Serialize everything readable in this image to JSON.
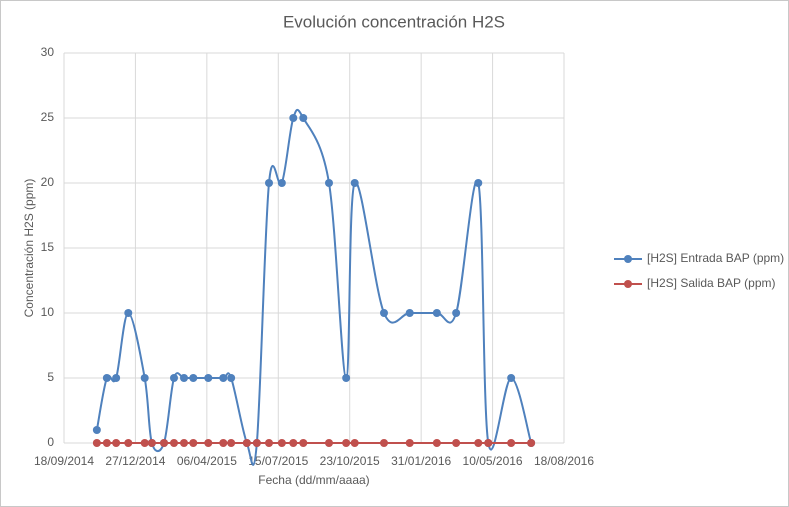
{
  "chart_data": {
    "type": "scatter",
    "smooth": true,
    "title": "Evolución concentración  H2S",
    "x_label": "Fecha (dd/mm/aaaa)",
    "y_label": "Concentración H2S (ppm)",
    "x": [
      "2014-11-03",
      "2014-11-17",
      "2014-11-30",
      "2014-12-17",
      "2015-01-09",
      "2015-01-19",
      "2015-02-05",
      "2015-02-19",
      "2015-03-05",
      "2015-03-18",
      "2015-04-08",
      "2015-04-29",
      "2015-05-10",
      "2015-06-01",
      "2015-06-15",
      "2015-07-02",
      "2015-07-20",
      "2015-08-05",
      "2015-08-19",
      "2015-09-24",
      "2015-10-18",
      "2015-10-30",
      "2015-12-10",
      "2016-01-15",
      "2016-02-22",
      "2016-03-20",
      "2016-04-20",
      "2016-05-04",
      "2016-06-05",
      "2016-07-03"
    ],
    "series": [
      {
        "name": "[H2S] Entrada BAP (ppm)",
        "color": "#4f81bd",
        "values": [
          1,
          5,
          5,
          10,
          5,
          0,
          0,
          5,
          5,
          5,
          5,
          5,
          5,
          0,
          0,
          20,
          20,
          25,
          25,
          20,
          5,
          20,
          10,
          10,
          10,
          10,
          20,
          0,
          5,
          0
        ]
      },
      {
        "name": "[H2S] Salida BAP (ppm)",
        "color": "#c0504d",
        "values": [
          0,
          0,
          0,
          0,
          0,
          0,
          0,
          0,
          0,
          0,
          0,
          0,
          0,
          0,
          0,
          0,
          0,
          0,
          0,
          0,
          0,
          0,
          0,
          0,
          0,
          0,
          0,
          0,
          0,
          0
        ]
      }
    ],
    "xlim": [
      "2014-09-18",
      "2016-08-18"
    ],
    "xticks": [
      {
        "value": "2014-09-18",
        "label": "18/09/2014"
      },
      {
        "value": "2014-12-27",
        "label": "27/12/2014"
      },
      {
        "value": "2015-04-06",
        "label": "06/04/2015"
      },
      {
        "value": "2015-07-15",
        "label": "15/07/2015"
      },
      {
        "value": "2015-10-23",
        "label": "23/10/2015"
      },
      {
        "value": "2016-01-31",
        "label": "31/01/2016"
      },
      {
        "value": "2016-05-10",
        "label": "10/05/2016"
      },
      {
        "value": "2016-08-18",
        "label": "18/08/2016"
      }
    ],
    "ylim": [
      0,
      30
    ],
    "yticks": [
      0,
      5,
      10,
      15,
      20,
      25,
      30
    ],
    "grid": true,
    "legend": "right"
  }
}
